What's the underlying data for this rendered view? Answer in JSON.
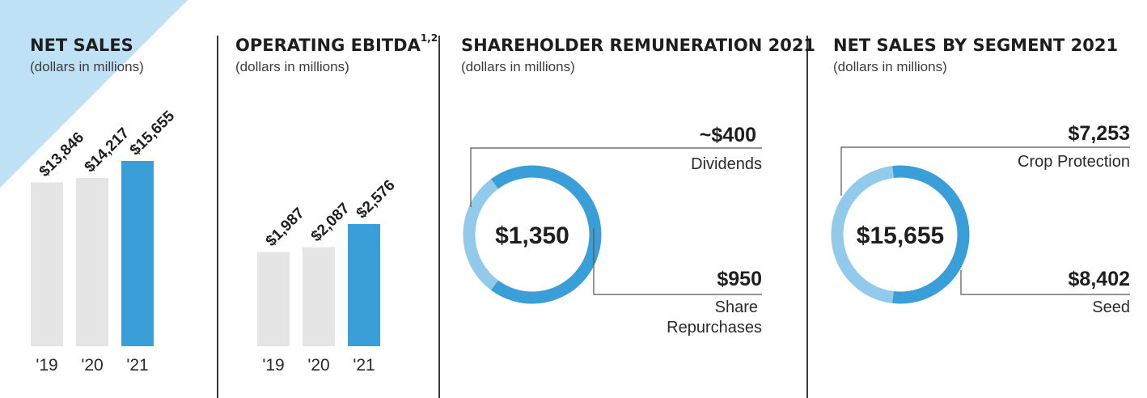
{
  "colors": {
    "accent": "#3a9fd9",
    "light_accent": "#91caeb",
    "gray_bar": "#e5e5e5",
    "text": "#1e1e1e",
    "corner": "#bfe1f5"
  },
  "panels": {
    "net_sales": {
      "title": "NET SALES",
      "subtitle": "(dollars in millions)"
    },
    "ebitda": {
      "title": "OPERATING EBITDA",
      "title_sup": "1,2",
      "subtitle": "(dollars in millions)"
    },
    "remuneration": {
      "title": "SHAREHOLDER REMUNERATION 2021",
      "subtitle": "(dollars in millions)"
    },
    "segment": {
      "title": "NET SALES BY SEGMENT 2021",
      "subtitle": "(dollars in millions)"
    }
  },
  "chart_data": [
    {
      "type": "bar",
      "title": "NET SALES",
      "subtitle": "(dollars in millions)",
      "categories": [
        "'19",
        "'20",
        "'21"
      ],
      "values": [
        13846,
        14217,
        15655
      ],
      "value_labels": [
        "$13,846",
        "$14,217",
        "$15,655"
      ],
      "highlight_index": 2
    },
    {
      "type": "bar",
      "title": "OPERATING EBITDA",
      "subtitle": "(dollars in millions)",
      "categories": [
        "'19",
        "'20",
        "'21"
      ],
      "values": [
        1987,
        2087,
        2576
      ],
      "value_labels": [
        "$1,987",
        "$2,087",
        "$2,576"
      ],
      "highlight_index": 2
    },
    {
      "type": "pie",
      "title": "SHAREHOLDER REMUNERATION 2021",
      "subtitle": "(dollars in millions)",
      "center_label": "$1,350",
      "slices": [
        {
          "label_line1": "Dividends",
          "label_line2": "",
          "value": 400,
          "value_label": "~$400",
          "color": "#91caeb"
        },
        {
          "label_line1": "Share",
          "label_line2": "Repurchases",
          "value": 950,
          "value_label": "$950",
          "color": "#3a9fd9"
        }
      ]
    },
    {
      "type": "pie",
      "title": "NET SALES BY SEGMENT 2021",
      "subtitle": "(dollars in millions)",
      "center_label": "$15,655",
      "slices": [
        {
          "label_line1": "Crop Protection",
          "label_line2": "",
          "value": 7253,
          "value_label": "$7,253",
          "color": "#91caeb"
        },
        {
          "label_line1": "Seed",
          "label_line2": "",
          "value": 8402,
          "value_label": "$8,402",
          "color": "#3a9fd9"
        }
      ]
    }
  ]
}
